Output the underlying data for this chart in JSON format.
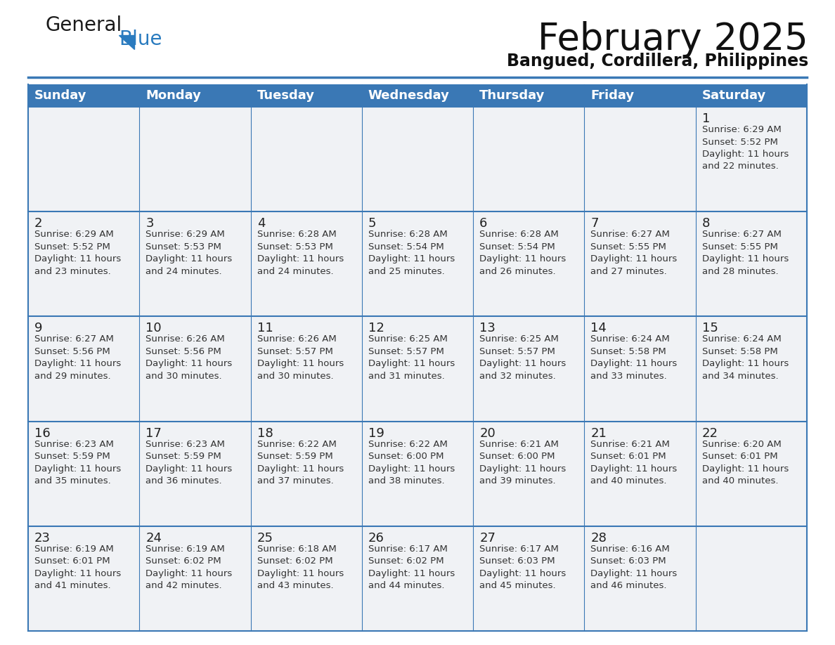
{
  "title": "February 2025",
  "subtitle": "Bangued, Cordillera, Philippines",
  "header_bg": "#3a78b5",
  "header_text_color": "#ffffff",
  "cell_bg": "#f0f2f5",
  "cell_bg_white": "#ffffff",
  "day_num_color": "#222222",
  "text_color": "#333333",
  "border_color": "#3a78b5",
  "days_of_week": [
    "Sunday",
    "Monday",
    "Tuesday",
    "Wednesday",
    "Thursday",
    "Friday",
    "Saturday"
  ],
  "weeks": [
    [
      {
        "day": null,
        "info": null
      },
      {
        "day": null,
        "info": null
      },
      {
        "day": null,
        "info": null
      },
      {
        "day": null,
        "info": null
      },
      {
        "day": null,
        "info": null
      },
      {
        "day": null,
        "info": null
      },
      {
        "day": 1,
        "info": "Sunrise: 6:29 AM\nSunset: 5:52 PM\nDaylight: 11 hours\nand 22 minutes."
      }
    ],
    [
      {
        "day": 2,
        "info": "Sunrise: 6:29 AM\nSunset: 5:52 PM\nDaylight: 11 hours\nand 23 minutes."
      },
      {
        "day": 3,
        "info": "Sunrise: 6:29 AM\nSunset: 5:53 PM\nDaylight: 11 hours\nand 24 minutes."
      },
      {
        "day": 4,
        "info": "Sunrise: 6:28 AM\nSunset: 5:53 PM\nDaylight: 11 hours\nand 24 minutes."
      },
      {
        "day": 5,
        "info": "Sunrise: 6:28 AM\nSunset: 5:54 PM\nDaylight: 11 hours\nand 25 minutes."
      },
      {
        "day": 6,
        "info": "Sunrise: 6:28 AM\nSunset: 5:54 PM\nDaylight: 11 hours\nand 26 minutes."
      },
      {
        "day": 7,
        "info": "Sunrise: 6:27 AM\nSunset: 5:55 PM\nDaylight: 11 hours\nand 27 minutes."
      },
      {
        "day": 8,
        "info": "Sunrise: 6:27 AM\nSunset: 5:55 PM\nDaylight: 11 hours\nand 28 minutes."
      }
    ],
    [
      {
        "day": 9,
        "info": "Sunrise: 6:27 AM\nSunset: 5:56 PM\nDaylight: 11 hours\nand 29 minutes."
      },
      {
        "day": 10,
        "info": "Sunrise: 6:26 AM\nSunset: 5:56 PM\nDaylight: 11 hours\nand 30 minutes."
      },
      {
        "day": 11,
        "info": "Sunrise: 6:26 AM\nSunset: 5:57 PM\nDaylight: 11 hours\nand 30 minutes."
      },
      {
        "day": 12,
        "info": "Sunrise: 6:25 AM\nSunset: 5:57 PM\nDaylight: 11 hours\nand 31 minutes."
      },
      {
        "day": 13,
        "info": "Sunrise: 6:25 AM\nSunset: 5:57 PM\nDaylight: 11 hours\nand 32 minutes."
      },
      {
        "day": 14,
        "info": "Sunrise: 6:24 AM\nSunset: 5:58 PM\nDaylight: 11 hours\nand 33 minutes."
      },
      {
        "day": 15,
        "info": "Sunrise: 6:24 AM\nSunset: 5:58 PM\nDaylight: 11 hours\nand 34 minutes."
      }
    ],
    [
      {
        "day": 16,
        "info": "Sunrise: 6:23 AM\nSunset: 5:59 PM\nDaylight: 11 hours\nand 35 minutes."
      },
      {
        "day": 17,
        "info": "Sunrise: 6:23 AM\nSunset: 5:59 PM\nDaylight: 11 hours\nand 36 minutes."
      },
      {
        "day": 18,
        "info": "Sunrise: 6:22 AM\nSunset: 5:59 PM\nDaylight: 11 hours\nand 37 minutes."
      },
      {
        "day": 19,
        "info": "Sunrise: 6:22 AM\nSunset: 6:00 PM\nDaylight: 11 hours\nand 38 minutes."
      },
      {
        "day": 20,
        "info": "Sunrise: 6:21 AM\nSunset: 6:00 PM\nDaylight: 11 hours\nand 39 minutes."
      },
      {
        "day": 21,
        "info": "Sunrise: 6:21 AM\nSunset: 6:01 PM\nDaylight: 11 hours\nand 40 minutes."
      },
      {
        "day": 22,
        "info": "Sunrise: 6:20 AM\nSunset: 6:01 PM\nDaylight: 11 hours\nand 40 minutes."
      }
    ],
    [
      {
        "day": 23,
        "info": "Sunrise: 6:19 AM\nSunset: 6:01 PM\nDaylight: 11 hours\nand 41 minutes."
      },
      {
        "day": 24,
        "info": "Sunrise: 6:19 AM\nSunset: 6:02 PM\nDaylight: 11 hours\nand 42 minutes."
      },
      {
        "day": 25,
        "info": "Sunrise: 6:18 AM\nSunset: 6:02 PM\nDaylight: 11 hours\nand 43 minutes."
      },
      {
        "day": 26,
        "info": "Sunrise: 6:17 AM\nSunset: 6:02 PM\nDaylight: 11 hours\nand 44 minutes."
      },
      {
        "day": 27,
        "info": "Sunrise: 6:17 AM\nSunset: 6:03 PM\nDaylight: 11 hours\nand 45 minutes."
      },
      {
        "day": 28,
        "info": "Sunrise: 6:16 AM\nSunset: 6:03 PM\nDaylight: 11 hours\nand 46 minutes."
      },
      {
        "day": null,
        "info": null
      }
    ]
  ],
  "logo_text1": "General",
  "logo_text2": "Blue",
  "logo_color1": "#1a1a1a",
  "logo_color2": "#2a7bbf",
  "logo_triangle_color": "#2a7bbf",
  "title_fontsize": 38,
  "subtitle_fontsize": 17,
  "header_fontsize": 13,
  "day_num_fontsize": 13,
  "cell_text_fontsize": 9.5
}
